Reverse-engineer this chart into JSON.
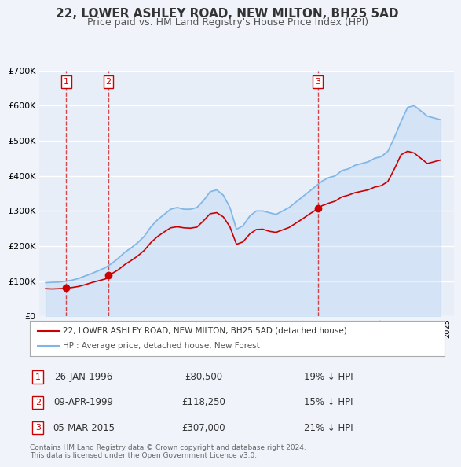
{
  "title": "22, LOWER ASHLEY ROAD, NEW MILTON, BH25 5AD",
  "subtitle": "Price paid vs. HM Land Registry's House Price Index (HPI)",
  "title_fontsize": 11,
  "subtitle_fontsize": 9,
  "background_color": "#f0f4fa",
  "plot_bg_color": "#e8eef8",
  "grid_color": "#ffffff",
  "red_line_color": "#cc0000",
  "blue_line_color": "#7eb6e8",
  "transactions": [
    {
      "date": "1996-01-26",
      "price": 80500,
      "label": "1"
    },
    {
      "date": "1999-04-09",
      "price": 118250,
      "label": "2"
    },
    {
      "date": "2015-03-05",
      "price": 307000,
      "label": "3"
    }
  ],
  "legend_red_label": "22, LOWER ASHLEY ROAD, NEW MILTON, BH25 5AD (detached house)",
  "legend_blue_label": "HPI: Average price, detached house, New Forest",
  "table_rows": [
    {
      "num": "1",
      "date": "26-JAN-1996",
      "price": "£80,500",
      "hpi": "19% ↓ HPI"
    },
    {
      "num": "2",
      "date": "09-APR-1999",
      "price": "£118,250",
      "hpi": "15% ↓ HPI"
    },
    {
      "num": "3",
      "date": "05-MAR-2015",
      "price": "£307,000",
      "hpi": "21% ↓ HPI"
    }
  ],
  "footer": "Contains HM Land Registry data © Crown copyright and database right 2024.\nThis data is licensed under the Open Government Licence v3.0.",
  "ylim": [
    0,
    700000
  ],
  "xlim_start": 1994.0,
  "xlim_end": 2025.5
}
